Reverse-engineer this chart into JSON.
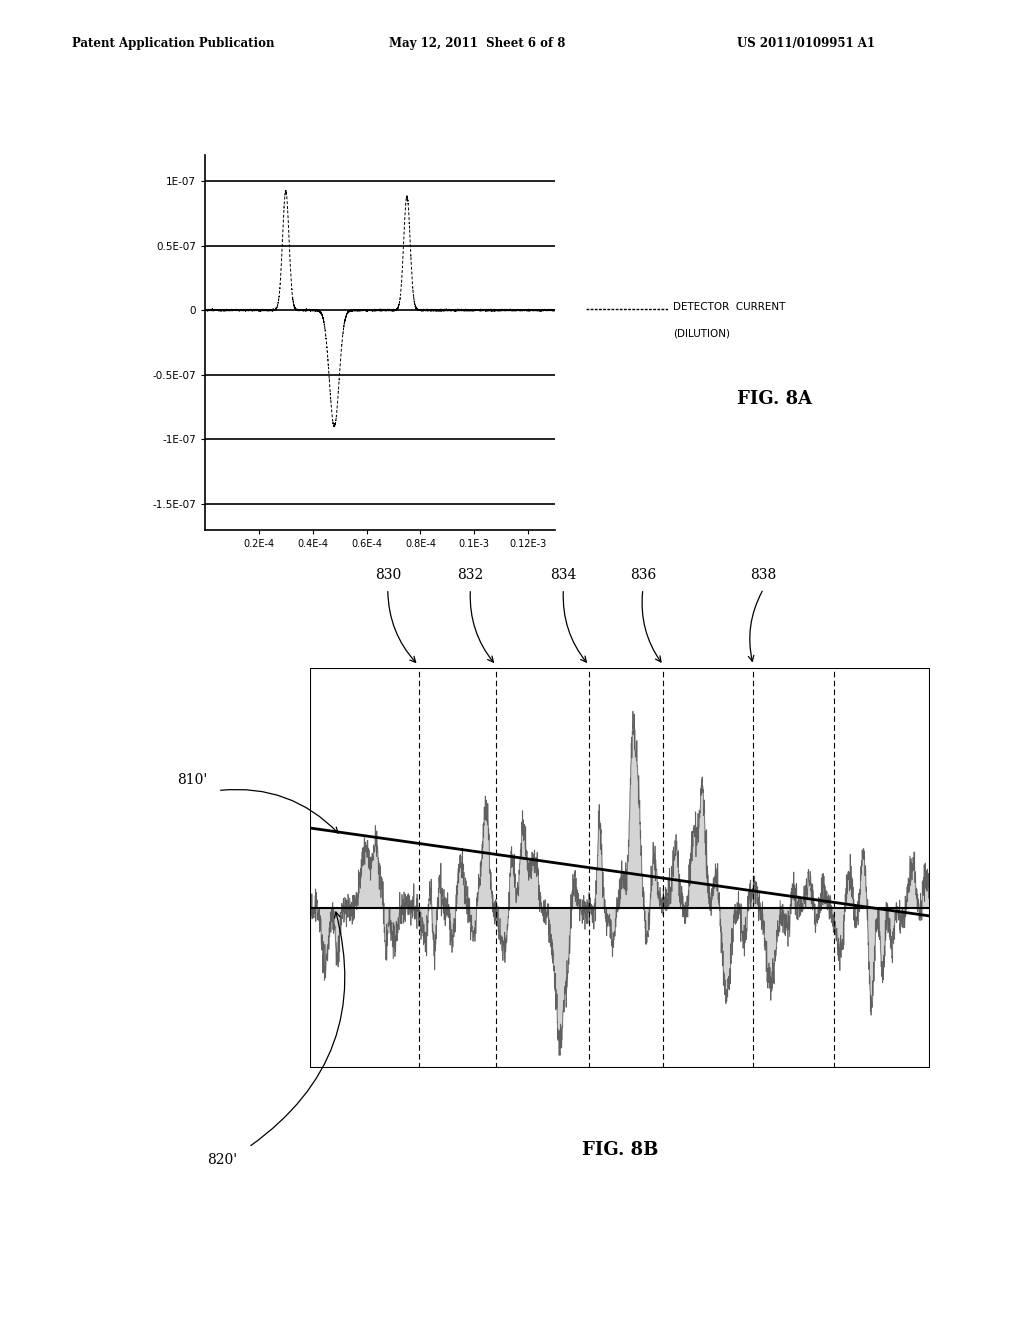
{
  "header_left": "Patent Application Publication",
  "header_mid": "May 12, 2011  Sheet 6 of 8",
  "header_right": "US 2011/0109951 A1",
  "fig8a_label": "FIG. 8A",
  "fig8b_label": "FIG. 8B",
  "yticks_8a": [
    "1E-07",
    "0.5E-07",
    "0",
    "-0.5E-07",
    "-1E-07",
    "-1.5E-07"
  ],
  "ytick_vals_8a": [
    1e-07,
    5e-08,
    0,
    -5e-08,
    -1e-07,
    -1.5e-07
  ],
  "xticks_8a": [
    "0.2E-4",
    "0.4E-4",
    "0.6E-4",
    "0.8E-4",
    "0.1E-3",
    "0.12E-3"
  ],
  "xtick_vals_8a": [
    2e-05,
    4e-05,
    6e-05,
    8e-05,
    0.0001,
    0.00012
  ],
  "xlim_8a": [
    0.0,
    0.00013
  ],
  "ylim_8a": [
    -1.7e-07,
    1.2e-07
  ],
  "background_color": "#ffffff",
  "box_labels": [
    "830",
    "832",
    "834",
    "836",
    "838"
  ],
  "label_810": "810'",
  "label_820": "820'"
}
